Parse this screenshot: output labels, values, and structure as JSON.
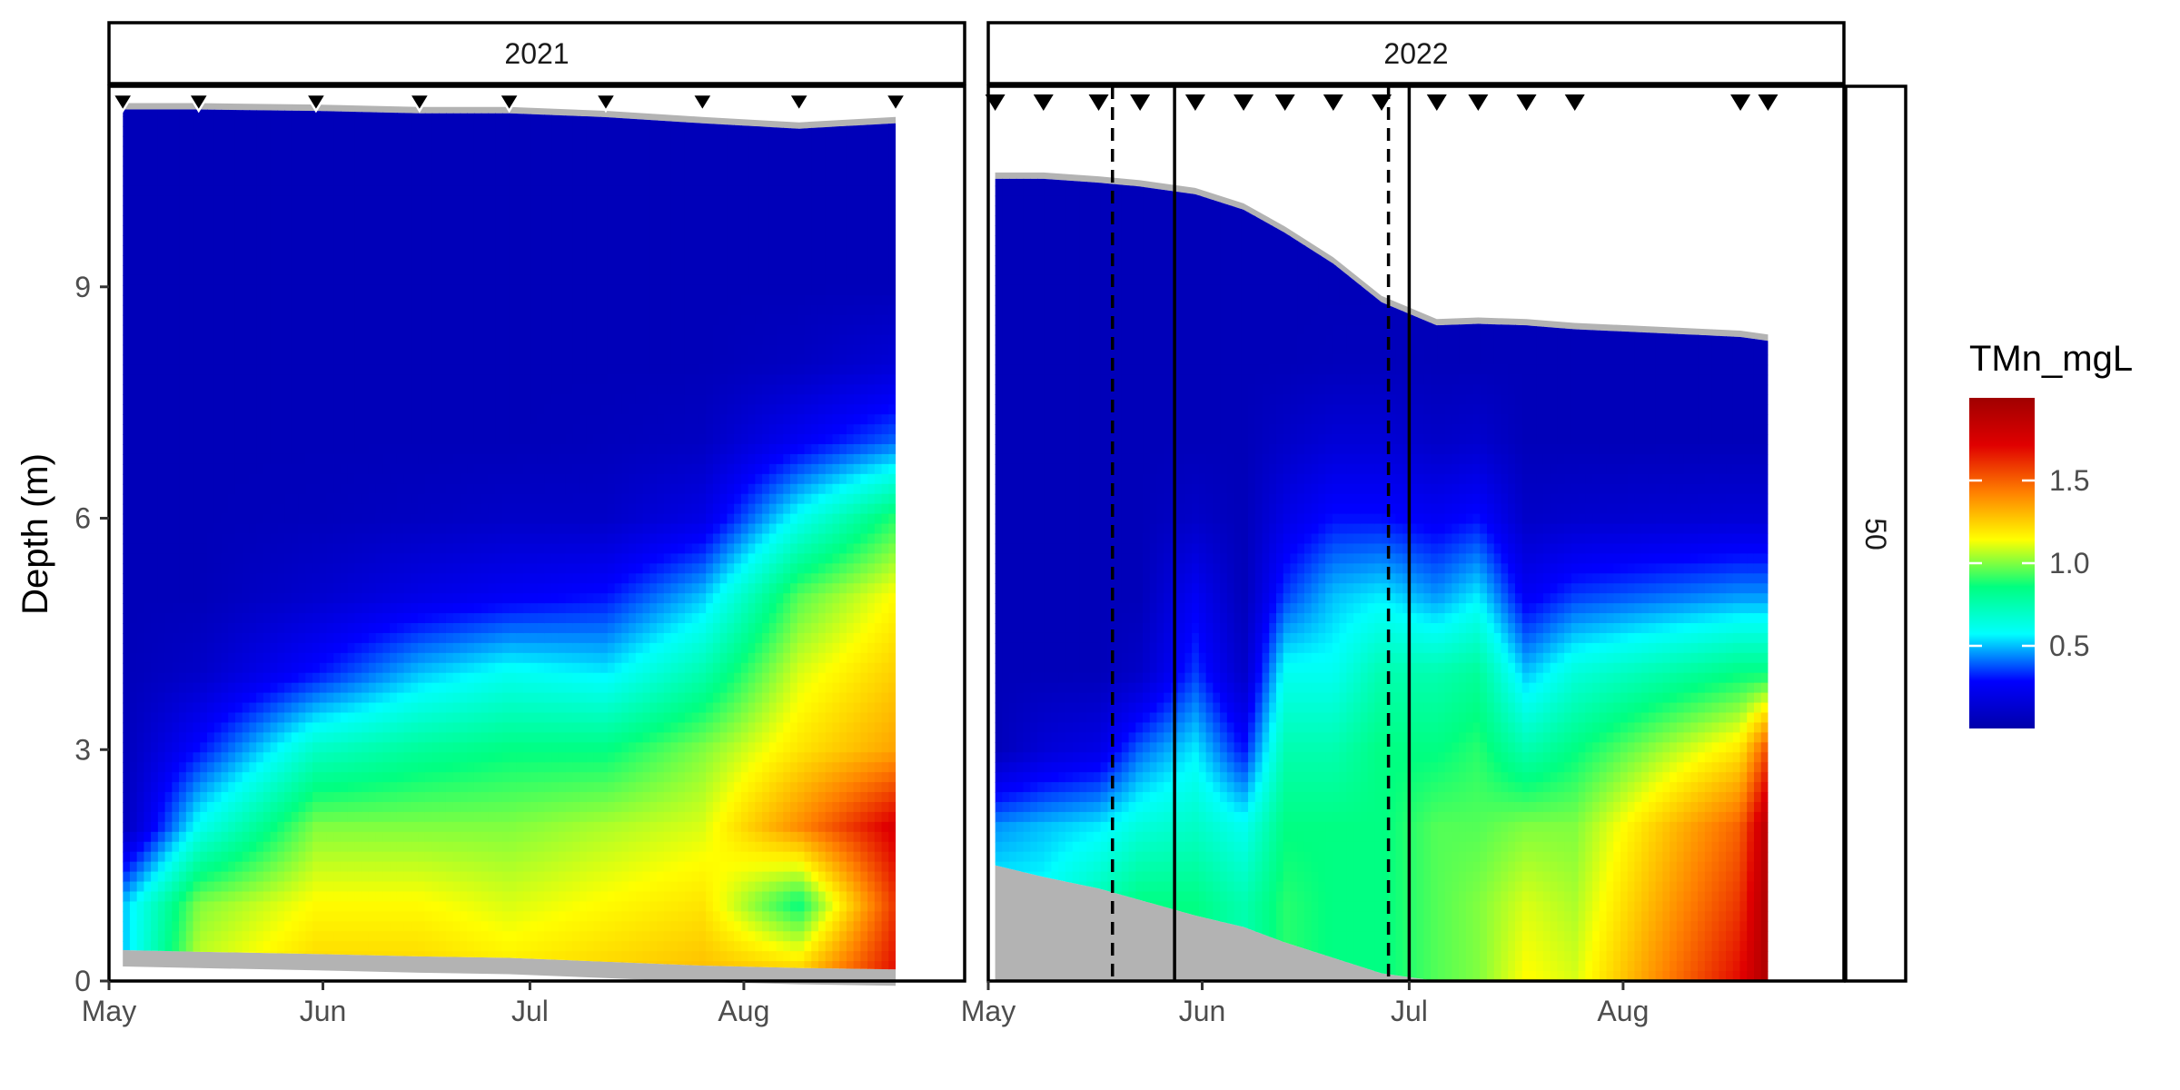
{
  "chart_data": {
    "type": "heatmap",
    "ylabel": "Depth (m)",
    "legend": {
      "title": "TMn_mgL",
      "ticks": [
        "0.5",
        "1.0",
        "1.5"
      ],
      "tick_values": [
        0.5,
        1.0,
        1.5
      ],
      "range": [
        0.0,
        2.0
      ],
      "colors": [
        "#0000aa",
        "#0000ff",
        "#00ffff",
        "#00ff80",
        "#ffff00",
        "#ff8000",
        "#e00000",
        "#a00000"
      ],
      "placement": "right"
    },
    "y_ticks": [
      "0",
      "3",
      "6",
      "9"
    ],
    "y_tick_values": [
      0,
      3,
      6,
      9
    ],
    "ylim": [
      0,
      11.6
    ],
    "strip_right": "50",
    "colors": {
      "bathymetry": "#b3b3b3",
      "panel_border": "#000000",
      "marker": "#000000",
      "marker_outline": "#ffffff"
    },
    "panels": [
      {
        "strip": "2021",
        "x_ticks": [
          "May",
          "Jun",
          "Jul",
          "Aug"
        ],
        "x_tick_dates": [
          "2021-05-01",
          "2021-06-01",
          "2021-07-01",
          "2021-08-01"
        ],
        "xlim": [
          "2021-05-01",
          "2021-09-02"
        ],
        "sample_dates": [
          "2021-05-03",
          "2021-05-14",
          "2021-05-31",
          "2021-06-15",
          "2021-06-28",
          "2021-07-12",
          "2021-07-26",
          "2021-08-09",
          "2021-08-23"
        ],
        "water_surface": [
          11.3,
          11.3,
          11.28,
          11.25,
          11.25,
          11.2,
          11.12,
          11.05,
          11.12
        ],
        "bottom": [
          0.4,
          0.38,
          0.35,
          0.32,
          0.3,
          0.25,
          0.2,
          0.17,
          0.15
        ],
        "depths": [
          0,
          1,
          2,
          3,
          4,
          5,
          6,
          7,
          8,
          9,
          10,
          11
        ],
        "values": [
          [
            0.5,
            0.5,
            0.05,
            0.05,
            0.05,
            0.05,
            0.05,
            0.05,
            0.05,
            0.05,
            0.05,
            0.05
          ],
          [
            1.1,
            1.0,
            0.6,
            0.3,
            0.1,
            0.05,
            0.05,
            0.05,
            0.05,
            0.05,
            0.05,
            0.05
          ],
          [
            1.25,
            1.15,
            1.0,
            0.7,
            0.3,
            0.12,
            0.06,
            0.05,
            0.05,
            0.05,
            0.05,
            0.05
          ],
          [
            1.25,
            1.15,
            1.0,
            0.8,
            0.5,
            0.2,
            0.08,
            0.05,
            0.05,
            0.05,
            0.05,
            0.05
          ],
          [
            1.2,
            1.1,
            1.0,
            0.85,
            0.6,
            0.25,
            0.1,
            0.05,
            0.05,
            0.05,
            0.05,
            0.05
          ],
          [
            1.25,
            1.15,
            1.05,
            0.85,
            0.55,
            0.3,
            0.1,
            0.06,
            0.05,
            0.05,
            0.05,
            0.05
          ],
          [
            1.3,
            1.2,
            1.1,
            1.0,
            0.75,
            0.5,
            0.2,
            0.08,
            0.05,
            0.05,
            0.05,
            0.05
          ],
          [
            1.3,
            0.85,
            1.4,
            1.2,
            1.1,
            0.95,
            0.6,
            0.25,
            0.08,
            0.05,
            0.05,
            0.05
          ],
          [
            1.7,
            1.6,
            1.75,
            1.35,
            1.25,
            1.15,
            0.9,
            0.4,
            0.15,
            0.05,
            0.05,
            0.05
          ]
        ]
      },
      {
        "strip": "2022",
        "x_ticks": [
          "May",
          "Jun",
          "Jul",
          "Aug"
        ],
        "x_tick_dates": [
          "2022-05-01",
          "2022-06-01",
          "2022-07-01",
          "2022-08-01"
        ],
        "xlim": [
          "2022-05-01",
          "2022-09-02"
        ],
        "sample_dates": [
          "2022-05-02",
          "2022-05-09",
          "2022-05-17",
          "2022-05-23",
          "2022-05-31",
          "2022-06-07",
          "2022-06-13",
          "2022-06-20",
          "2022-06-27",
          "2022-07-05",
          "2022-07-11",
          "2022-07-18",
          "2022-07-25",
          "2022-08-18",
          "2022-08-22"
        ],
        "water_surface": [
          10.4,
          10.4,
          10.35,
          10.3,
          10.2,
          10.0,
          9.7,
          9.3,
          8.8,
          8.5,
          8.52,
          8.5,
          8.45,
          8.35,
          8.3
        ],
        "bottom": [
          1.5,
          1.35,
          1.2,
          1.05,
          0.85,
          0.7,
          0.5,
          0.3,
          0.1,
          0.0,
          0.0,
          0.0,
          0.0,
          0.0,
          0.0
        ],
        "depths": [
          0,
          1,
          2,
          3,
          4,
          5,
          6,
          7,
          8,
          9,
          10,
          11
        ],
        "values": [
          [
            0.6,
            0.6,
            0.45,
            0.05,
            0.05,
            0.05,
            0.05,
            0.05,
            0.05,
            0.05,
            0.05,
            0.05
          ],
          [
            0.6,
            0.6,
            0.5,
            0.15,
            0.05,
            0.05,
            0.05,
            0.05,
            0.05,
            0.05,
            0.05,
            0.05
          ],
          [
            0.75,
            0.75,
            0.55,
            0.2,
            0.05,
            0.05,
            0.05,
            0.05,
            0.05,
            0.05,
            0.05,
            0.05
          ],
          [
            0.85,
            0.85,
            0.65,
            0.4,
            0.1,
            0.05,
            0.05,
            0.05,
            0.05,
            0.05,
            0.05,
            0.05
          ],
          [
            0.85,
            0.85,
            0.7,
            0.55,
            0.35,
            0.25,
            0.1,
            0.05,
            0.05,
            0.05,
            0.05,
            0.05
          ],
          [
            0.75,
            0.75,
            0.6,
            0.3,
            0.1,
            0.05,
            0.05,
            0.05,
            0.05,
            0.05,
            0.05,
            0.05
          ],
          [
            0.9,
            0.9,
            0.85,
            0.75,
            0.6,
            0.35,
            0.2,
            0.1,
            0.05,
            0.05,
            0.05,
            0.05
          ],
          [
            0.85,
            0.85,
            0.85,
            0.75,
            0.6,
            0.5,
            0.3,
            0.15,
            0.06,
            0.05,
            0.05,
            0.05
          ],
          [
            0.85,
            0.85,
            0.85,
            0.85,
            0.75,
            0.55,
            0.3,
            0.15,
            0.06,
            0.05,
            0.05,
            0.05
          ],
          [
            0.95,
            0.95,
            0.95,
            0.85,
            0.75,
            0.45,
            0.25,
            0.1,
            0.05,
            0.05,
            0.05,
            0.05
          ],
          [
            1.0,
            1.0,
            0.95,
            0.9,
            0.8,
            0.55,
            0.3,
            0.12,
            0.05,
            0.05,
            0.05,
            0.05
          ],
          [
            1.15,
            1.1,
            1.0,
            0.75,
            0.5,
            0.25,
            0.1,
            0.05,
            0.05,
            0.05,
            0.05,
            0.05
          ],
          [
            1.1,
            1.05,
            1.0,
            0.85,
            0.65,
            0.35,
            0.12,
            0.05,
            0.05,
            0.05,
            0.05,
            0.05
          ],
          [
            1.7,
            1.6,
            1.5,
            1.2,
            0.85,
            0.45,
            0.15,
            0.05,
            0.05,
            0.05,
            0.05,
            0.05
          ],
          [
            1.95,
            1.95,
            1.9,
            1.55,
            0.85,
            0.45,
            0.15,
            0.05,
            0.05,
            0.05,
            0.05,
            0.05
          ]
        ],
        "dashed_lines": [
          "2022-05-19",
          "2022-06-28"
        ],
        "solid_lines": [
          "2022-05-28",
          "2022-07-01"
        ]
      }
    ]
  }
}
